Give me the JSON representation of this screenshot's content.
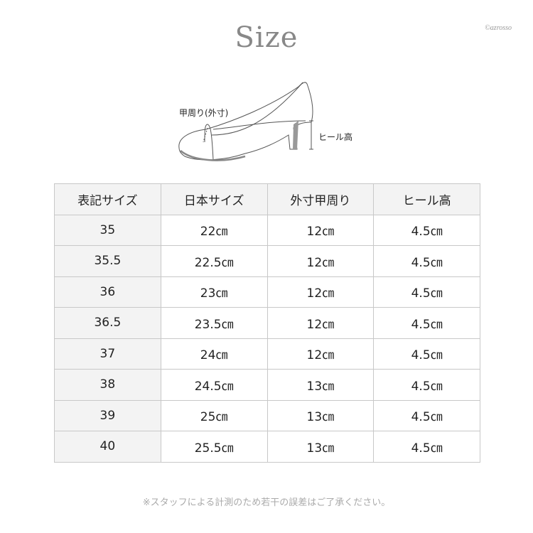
{
  "title": "Size",
  "brand": "©azrosso",
  "diagram": {
    "instep_label": "甲周り(外寸)",
    "heel_label": "ヒール高"
  },
  "table": {
    "headers": [
      "表記サイズ",
      "日本サイズ",
      "外寸甲周り",
      "ヒール高"
    ],
    "rows": [
      [
        "35",
        "22㎝",
        "12㎝",
        "4.5㎝"
      ],
      [
        "35.5",
        "22.5㎝",
        "12㎝",
        "4.5㎝"
      ],
      [
        "36",
        "23㎝",
        "12㎝",
        "4.5㎝"
      ],
      [
        "36.5",
        "23.5㎝",
        "12㎝",
        "4.5㎝"
      ],
      [
        "37",
        "24㎝",
        "12㎝",
        "4.5㎝"
      ],
      [
        "38",
        "24.5㎝",
        "13㎝",
        "4.5㎝"
      ],
      [
        "39",
        "25㎝",
        "13㎝",
        "4.5㎝"
      ],
      [
        "40",
        "25.5㎝",
        "13㎝",
        "4.5㎝"
      ]
    ]
  },
  "note": "※スタッフによる計測のため若干の誤差はご了承ください。"
}
